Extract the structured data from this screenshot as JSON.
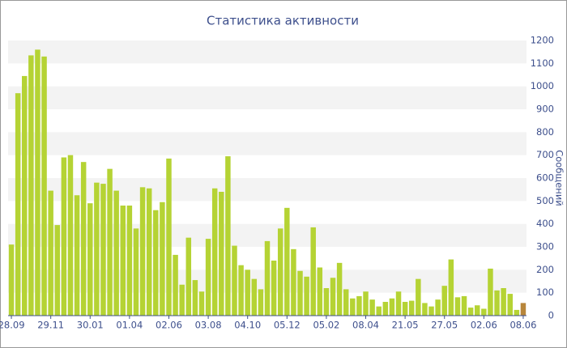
{
  "chart_data": {
    "type": "bar",
    "title": "Статистика активности",
    "y_label": "Сообщений",
    "categories": [
      "28.09",
      null,
      null,
      null,
      null,
      null,
      "29.11",
      null,
      null,
      null,
      null,
      null,
      "30.01",
      null,
      null,
      null,
      null,
      null,
      "01.04",
      null,
      null,
      null,
      null,
      null,
      "02.06",
      null,
      null,
      null,
      null,
      null,
      "03.08",
      null,
      null,
      null,
      null,
      null,
      "04.10",
      null,
      null,
      null,
      null,
      null,
      "05.12",
      null,
      null,
      null,
      null,
      null,
      "05.02",
      null,
      null,
      null,
      null,
      null,
      "08.04",
      null,
      null,
      null,
      null,
      null,
      "21.05",
      null,
      null,
      null,
      null,
      null,
      "27.05",
      null,
      null,
      null,
      null,
      null,
      "02.06",
      null,
      null,
      null,
      null,
      null,
      "08.06"
    ],
    "values": [
      310,
      970,
      1045,
      1135,
      1160,
      1130,
      545,
      395,
      690,
      700,
      525,
      670,
      490,
      580,
      575,
      640,
      545,
      480,
      480,
      380,
      560,
      555,
      460,
      495,
      685,
      265,
      135,
      340,
      155,
      105,
      335,
      555,
      540,
      695,
      305,
      220,
      200,
      160,
      115,
      325,
      240,
      380,
      470,
      290,
      195,
      170,
      385,
      210,
      120,
      165,
      230,
      115,
      75,
      85,
      105,
      70,
      40,
      60,
      75,
      105,
      60,
      65,
      160,
      55,
      40,
      70,
      130,
      245,
      80,
      85,
      35,
      45,
      30,
      205,
      110,
      120,
      95,
      25,
      55
    ],
    "colors": [
      "#b5d334",
      "#b5d334",
      "#b5d334",
      "#b5d334",
      "#b5d334",
      "#b5d334",
      "#b5d334",
      "#b5d334",
      "#b5d334",
      "#b5d334",
      "#b5d334",
      "#b5d334",
      "#b5d334",
      "#b5d334",
      "#b5d334",
      "#b5d334",
      "#b5d334",
      "#b5d334",
      "#b5d334",
      "#b5d334",
      "#b5d334",
      "#b5d334",
      "#b5d334",
      "#b5d334",
      "#b5d334",
      "#b5d334",
      "#b5d334",
      "#b5d334",
      "#b5d334",
      "#b5d334",
      "#b5d334",
      "#b5d334",
      "#b5d334",
      "#b5d334",
      "#b5d334",
      "#b5d334",
      "#b5d334",
      "#b5d334",
      "#b5d334",
      "#b5d334",
      "#b5d334",
      "#b5d334",
      "#b5d334",
      "#b5d334",
      "#b5d334",
      "#b5d334",
      "#b5d334",
      "#b5d334",
      "#b5d334",
      "#b5d334",
      "#b5d334",
      "#b5d334",
      "#b5d334",
      "#b5d334",
      "#b5d334",
      "#b5d334",
      "#b5d334",
      "#b5d334",
      "#b5d334",
      "#b5d334",
      "#b5d334",
      "#b5d334",
      "#b5d334",
      "#b5d334",
      "#b5d334",
      "#b5d334",
      "#b5d334",
      "#b5d334",
      "#b5d334",
      "#b5d334",
      "#b5d334",
      "#b5d334",
      "#b5d334",
      "#b5d334",
      "#b5d334",
      "#b5d334",
      "#b5d334",
      "#b5d334",
      "#b8863b"
    ],
    "ylim": [
      0,
      1200
    ],
    "yticks": [
      0,
      100,
      200,
      300,
      400,
      500,
      600,
      700,
      800,
      900,
      1000,
      1100,
      1200
    ],
    "grid": true,
    "y_axis_side": "right"
  }
}
